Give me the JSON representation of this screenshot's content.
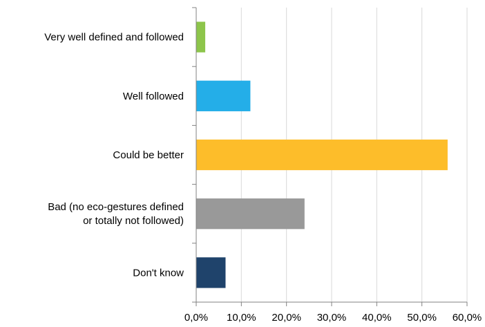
{
  "chart_data": {
    "type": "bar",
    "orientation": "horizontal",
    "categories": [
      [
        "Very well defined and followed"
      ],
      [
        "Well followed"
      ],
      [
        "Could be better"
      ],
      [
        "Bad (no eco-gestures defined",
        "or totally not followed)"
      ],
      [
        "Don't know"
      ]
    ],
    "values": [
      2.0,
      12.0,
      55.7,
      24.0,
      6.5
    ],
    "colors": [
      "#8dc54b",
      "#24aee8",
      "#fdbd2a",
      "#999999",
      "#1f436b"
    ],
    "x_ticks": [
      "0,0%",
      "10,0%",
      "20,0%",
      "30,0%",
      "40,0%",
      "50,0%",
      "60,0%"
    ],
    "xlim": [
      0,
      60
    ],
    "grid": "vertical",
    "legend": "none",
    "title": "",
    "xlabel": "",
    "ylabel": ""
  }
}
